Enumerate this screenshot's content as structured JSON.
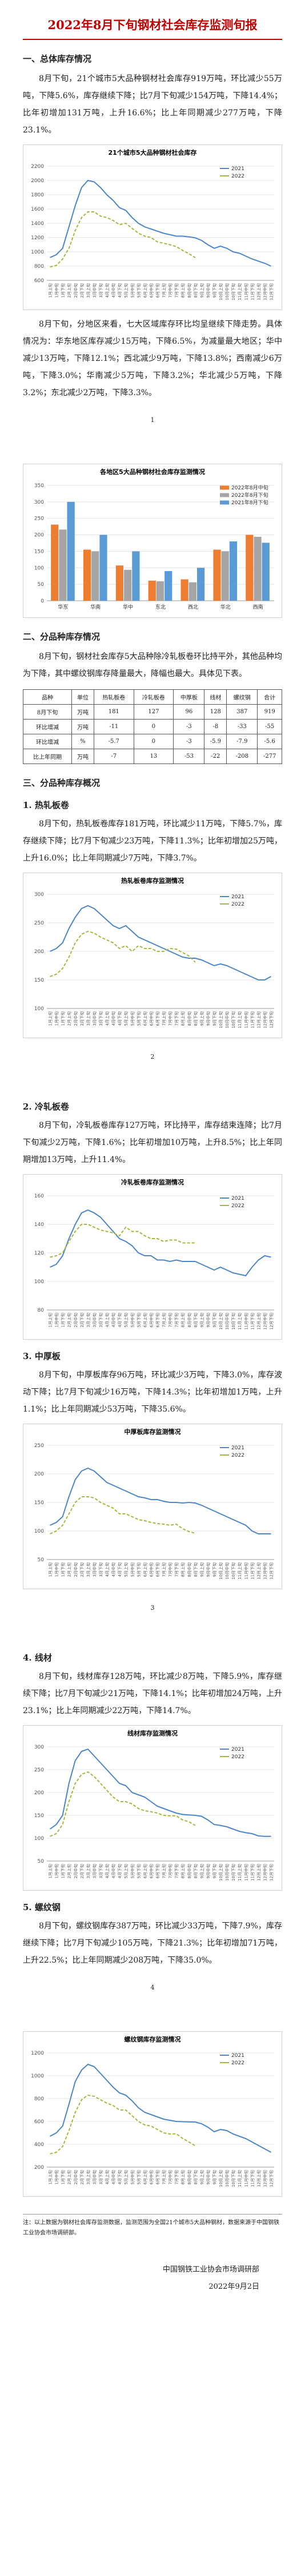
{
  "title": "2022年8月下旬钢材社会库存监测旬报",
  "section1": {
    "heading": "一、总体库存情况",
    "para1": "8月下旬，21个城市5大品种钢材社会库存919万吨，环比减少55万吨，下降5.6%，库存继续下降；比7月下旬减少154万吨，下降14.4%；比年初增加131万吨，上升16.6%；比上年同期减少277万吨，下降23.1%。",
    "para2": "8月下旬，分地区来看，七大区域库存环比均呈继续下降走势。具体情况为：华东地区库存减少15万吨，下降6.5%，为减量最大地区；华中减少13万吨，下降12.1%；西北减少9万吨，下降13.8%；西南减少6万吨，下降3.0%；华南减少5万吨，下降3.2%；华北减少5万吨，下降3.2%；东北减少2万吨，下降3.3%。"
  },
  "section2": {
    "heading": "二、分品种库存情况",
    "para": "8月下旬，钢材社会库存5大品种除冷轧板卷环比持平外，其他品种均为下降，其中螺纹钢库存降量最大，降幅也最大。具体见下表。",
    "table": {
      "header": [
        "品种",
        "单位",
        "热轧板卷",
        "冷轧板卷",
        "中厚板",
        "线材",
        "螺纹钢",
        "合计"
      ],
      "rows": [
        [
          "8月下旬",
          "万吨",
          181,
          127,
          96,
          128,
          387,
          919
        ],
        [
          "环比增减",
          "万吨",
          -11,
          0,
          -3,
          -8,
          -33,
          -55
        ],
        [
          "环比增减",
          "%",
          -5.7,
          0,
          -3.0,
          -5.9,
          -7.9,
          -5.6
        ],
        [
          "比上年同期",
          "万吨",
          -7,
          13,
          -53,
          -22,
          -208,
          -277
        ]
      ]
    }
  },
  "section3": {
    "heading": "三、分品种库存概况",
    "items": [
      {
        "heading": "1. 热轧板卷",
        "para": "8月下旬，热轧板卷库存181万吨，环比减少11万吨，下降5.7%，库存继续下降；比7月下旬减少23万吨，下降11.3%；比年初增加25万吨，上升16.0%；比上年同期减少7万吨，下降3.7%。"
      },
      {
        "heading": "2. 冷轧板卷",
        "para": "8月下旬，冷轧板卷库存127万吨，环比持平，库存结束连降；比7月下旬减少2万吨，下降1.6%；比年初增加10万吨，上升8.5%；比上年同期增加13万吨，上升11.4%。"
      },
      {
        "heading": "3. 中厚板",
        "para": "8月下旬，中厚板库存96万吨，环比减少3万吨，下降3.0%，库存波动下降；比7月下旬减少16万吨，下降14.3%；比年初增加1万吨，上升1.1%；比上年同期减少53万吨，下降35.6%。"
      },
      {
        "heading": "4. 线材",
        "para": "8月下旬，线材库存128万吨，环比减少8万吨，下降5.9%，库存继续下降；比7月下旬减少21万吨，下降14.1%；比年初增加24万吨，上升23.1%；比上年同期减少22万吨，下降14.7%。"
      },
      {
        "heading": "5. 螺纹钢",
        "para": "8月下旬，螺纹钢库存387万吨，环比减少33万吨，下降7.9%，库存继续下降；比7月下旬减少105万吨，下降21.3%；比年初增加71万吨，上升22.5%；比上年同期减少208万吨，下降35.0%。"
      }
    ]
  },
  "note": "注：以上数据为钢材社会库存监测数据，监测范围为全国21个城市5大品种钢材，数据来源于中国钢铁工业协会市场调研部。",
  "footer": {
    "org": "中国钢铁工业协会市场调研部",
    "date": "2022年9月2日"
  },
  "page_numbers": [
    1,
    2,
    3,
    4
  ],
  "chart_data": [
    {
      "type": "line",
      "title": "21个城市5大品种钢材社会库存",
      "legend": "upper right",
      "categories": [
        "1月上旬",
        "1月中旬",
        "1月下旬",
        "2月上旬",
        "2月中旬",
        "2月下旬",
        "3月上旬",
        "3月中旬",
        "3月下旬",
        "4月上旬",
        "4月中旬",
        "4月下旬",
        "5月上旬",
        "5月中旬",
        "5月下旬",
        "6月上旬",
        "6月中旬",
        "6月下旬",
        "7月上旬",
        "7月中旬",
        "7月下旬",
        "8月上旬",
        "8月中旬",
        "8月下旬",
        "9月上旬",
        "9月中旬",
        "9月下旬",
        "10月上旬",
        "10月中旬",
        "10月下旬",
        "11月上旬",
        "11月中旬",
        "11月下旬",
        "12月上旬",
        "12月中旬",
        "12月下旬"
      ],
      "ylim": [
        600,
        2200
      ],
      "yticks": [
        600,
        800,
        1000,
        1200,
        1400,
        1600,
        1800,
        2000,
        2200
      ],
      "grid": true,
      "series": [
        {
          "name": "2021",
          "color": "#4a86c8",
          "values": [
            920,
            960,
            1050,
            1350,
            1650,
            1900,
            2000,
            1980,
            1900,
            1800,
            1720,
            1620,
            1580,
            1480,
            1400,
            1350,
            1320,
            1290,
            1260,
            1240,
            1220,
            1220,
            1210,
            1196,
            1160,
            1100,
            1050,
            1080,
            1050,
            1000,
            980,
            940,
            900,
            870,
            840,
            800
          ]
        },
        {
          "name": "2022",
          "color": "#a3b83c",
          "values": [
            788,
            810,
            900,
            1050,
            1300,
            1480,
            1560,
            1560,
            1500,
            1480,
            1440,
            1380,
            1400,
            1330,
            1260,
            1220,
            1200,
            1140,
            1120,
            1100,
            1073,
            1020,
            974,
            919,
            null,
            null,
            null,
            null,
            null,
            null,
            null,
            null,
            null,
            null,
            null,
            null
          ]
        }
      ]
    },
    {
      "type": "bar",
      "title": "各地区5大品种钢材社会库存监测情况",
      "legend": "upper right",
      "categories": [
        "华东",
        "华南",
        "华中",
        "东北",
        "西北",
        "华北",
        "西南"
      ],
      "ylim": [
        0,
        350
      ],
      "yticks": [
        0,
        50,
        100,
        150,
        200,
        250,
        300,
        350
      ],
      "grid": true,
      "series": [
        {
          "name": "2022年8月中旬",
          "color": "#ed7d31",
          "values": [
            231,
            155,
            107,
            61,
            65,
            155,
            200
          ]
        },
        {
          "name": "2022年8月下旬",
          "color": "#a5a5a5",
          "values": [
            216,
            150,
            94,
            59,
            56,
            150,
            194
          ]
        },
        {
          "name": "2021年8月下旬",
          "color": "#5b9bd5",
          "values": [
            300,
            200,
            150,
            90,
            100,
            180,
            176
          ]
        }
      ]
    },
    {
      "type": "line",
      "title": "热轧板卷库存监测情况",
      "legend": "upper right",
      "categories": [
        "1月上旬",
        "1月中旬",
        "1月下旬",
        "2月上旬",
        "2月中旬",
        "2月下旬",
        "3月上旬",
        "3月中旬",
        "3月下旬",
        "4月上旬",
        "4月中旬",
        "4月下旬",
        "5月上旬",
        "5月中旬",
        "5月下旬",
        "6月上旬",
        "6月中旬",
        "6月下旬",
        "7月上旬",
        "7月中旬",
        "7月下旬",
        "8月上旬",
        "8月中旬",
        "8月下旬",
        "9月上旬",
        "9月中旬",
        "9月下旬",
        "10月上旬",
        "10月中旬",
        "10月下旬",
        "11月上旬",
        "11月中旬",
        "11月下旬",
        "12月上旬",
        "12月中旬",
        "12月下旬"
      ],
      "ylim": [
        100,
        300
      ],
      "yticks": [
        100,
        150,
        200,
        250,
        300
      ],
      "grid": true,
      "series": [
        {
          "name": "2021",
          "color": "#4a86c8",
          "values": [
            200,
            205,
            215,
            240,
            260,
            275,
            280,
            275,
            265,
            255,
            245,
            240,
            245,
            235,
            225,
            220,
            215,
            210,
            205,
            200,
            195,
            190,
            188,
            188,
            185,
            180,
            175,
            178,
            175,
            170,
            165,
            160,
            155,
            150,
            150,
            156
          ]
        },
        {
          "name": "2022",
          "color": "#a3b83c",
          "values": [
            156,
            160,
            170,
            190,
            215,
            230,
            235,
            232,
            225,
            220,
            215,
            205,
            210,
            200,
            210,
            205,
            205,
            200,
            200,
            205,
            204,
            198,
            192,
            181,
            null,
            null,
            null,
            null,
            null,
            null,
            null,
            null,
            null,
            null,
            null,
            null
          ]
        }
      ]
    },
    {
      "type": "line",
      "title": "冷轧板卷库存监测情况",
      "legend": "upper right",
      "categories": [
        "1月上旬",
        "1月中旬",
        "1月下旬",
        "2月上旬",
        "2月中旬",
        "2月下旬",
        "3月上旬",
        "3月中旬",
        "3月下旬",
        "4月上旬",
        "4月中旬",
        "4月下旬",
        "5月上旬",
        "5月中旬",
        "5月下旬",
        "6月上旬",
        "6月中旬",
        "6月下旬",
        "7月上旬",
        "7月中旬",
        "7月下旬",
        "8月上旬",
        "8月中旬",
        "8月下旬",
        "9月上旬",
        "9月中旬",
        "9月下旬",
        "10月上旬",
        "10月中旬",
        "10月下旬",
        "11月上旬",
        "11月中旬",
        "11月下旬",
        "12月上旬",
        "12月中旬",
        "12月下旬"
      ],
      "ylim": [
        80,
        160
      ],
      "yticks": [
        80,
        100,
        120,
        140,
        160
      ],
      "grid": true,
      "series": [
        {
          "name": "2021",
          "color": "#4a86c8",
          "values": [
            110,
            112,
            118,
            130,
            140,
            148,
            150,
            148,
            145,
            140,
            135,
            130,
            128,
            125,
            120,
            118,
            118,
            115,
            115,
            114,
            115,
            114,
            114,
            114,
            112,
            110,
            108,
            110,
            108,
            106,
            105,
            104,
            110,
            115,
            118,
            117
          ]
        },
        {
          "name": "2022",
          "color": "#a3b83c",
          "values": [
            117,
            118,
            120,
            128,
            135,
            140,
            140,
            138,
            136,
            135,
            134,
            132,
            138,
            135,
            135,
            132,
            130,
            130,
            128,
            129,
            129,
            127,
            127,
            127,
            null,
            null,
            null,
            null,
            null,
            null,
            null,
            null,
            null,
            null,
            null,
            null
          ]
        }
      ]
    },
    {
      "type": "line",
      "title": "中厚板库存监测情况",
      "legend": "upper right",
      "categories": [
        "1月上旬",
        "1月中旬",
        "1月下旬",
        "2月上旬",
        "2月中旬",
        "2月下旬",
        "3月上旬",
        "3月中旬",
        "3月下旬",
        "4月上旬",
        "4月中旬",
        "4月下旬",
        "5月上旬",
        "5月中旬",
        "5月下旬",
        "6月上旬",
        "6月中旬",
        "6月下旬",
        "7月上旬",
        "7月中旬",
        "7月下旬",
        "8月上旬",
        "8月中旬",
        "8月下旬",
        "9月上旬",
        "9月中旬",
        "9月下旬",
        "10月上旬",
        "10月中旬",
        "10月下旬",
        "11月上旬",
        "11月中旬",
        "11月下旬",
        "12月上旬",
        "12月中旬",
        "12月下旬"
      ],
      "ylim": [
        50,
        250
      ],
      "yticks": [
        50,
        100,
        150,
        200,
        250
      ],
      "grid": true,
      "series": [
        {
          "name": "2021",
          "color": "#4a86c8",
          "values": [
            110,
            115,
            125,
            160,
            190,
            205,
            210,
            205,
            195,
            185,
            180,
            175,
            170,
            165,
            160,
            158,
            155,
            155,
            152,
            150,
            150,
            149,
            150,
            149,
            145,
            140,
            135,
            130,
            125,
            120,
            115,
            110,
            100,
            95,
            95,
            95
          ]
        },
        {
          "name": "2022",
          "color": "#a3b83c",
          "values": [
            95,
            100,
            110,
            130,
            150,
            160,
            160,
            158,
            150,
            145,
            140,
            130,
            130,
            125,
            120,
            118,
            115,
            113,
            112,
            110,
            112,
            104,
            99,
            96,
            null,
            null,
            null,
            null,
            null,
            null,
            null,
            null,
            null,
            null,
            null,
            null
          ]
        }
      ]
    },
    {
      "type": "line",
      "title": "线材库存监测情况",
      "legend": "upper right",
      "categories": [
        "1月上旬",
        "1月中旬",
        "1月下旬",
        "2月上旬",
        "2月中旬",
        "2月下旬",
        "3月上旬",
        "3月中旬",
        "3月下旬",
        "4月上旬",
        "4月中旬",
        "4月下旬",
        "5月上旬",
        "5月中旬",
        "5月下旬",
        "6月上旬",
        "6月中旬",
        "6月下旬",
        "7月上旬",
        "7月中旬",
        "7月下旬",
        "8月上旬",
        "8月中旬",
        "8月下旬",
        "9月上旬",
        "9月中旬",
        "9月下旬",
        "10月上旬",
        "10月中旬",
        "10月下旬",
        "11月上旬",
        "11月中旬",
        "11月下旬",
        "12月上旬",
        "12月中旬",
        "12月下旬"
      ],
      "ylim": [
        50,
        300
      ],
      "yticks": [
        50,
        100,
        150,
        200,
        250,
        300
      ],
      "grid": true,
      "series": [
        {
          "name": "2021",
          "color": "#4a86c8",
          "values": [
            120,
            130,
            150,
            220,
            270,
            290,
            295,
            280,
            265,
            250,
            235,
            220,
            215,
            200,
            195,
            190,
            180,
            170,
            165,
            160,
            155,
            152,
            151,
            150,
            148,
            140,
            130,
            128,
            125,
            120,
            115,
            112,
            110,
            105,
            104,
            104
          ]
        },
        {
          "name": "2022",
          "color": "#a3b83c",
          "values": [
            104,
            110,
            130,
            180,
            220,
            240,
            245,
            235,
            220,
            205,
            190,
            180,
            180,
            175,
            165,
            160,
            158,
            155,
            150,
            149,
            149,
            140,
            136,
            128,
            null,
            null,
            null,
            null,
            null,
            null,
            null,
            null,
            null,
            null,
            null,
            null
          ]
        }
      ]
    },
    {
      "type": "line",
      "title": "螺纹钢库存监测情况",
      "legend": "upper right",
      "categories": [
        "1月上旬",
        "1月中旬",
        "1月下旬",
        "2月上旬",
        "2月中旬",
        "2月下旬",
        "3月上旬",
        "3月中旬",
        "3月下旬",
        "4月上旬",
        "4月中旬",
        "4月下旬",
        "5月上旬",
        "5月中旬",
        "5月下旬",
        "6月上旬",
        "6月中旬",
        "6月下旬",
        "7月上旬",
        "7月中旬",
        "7月下旬",
        "8月上旬",
        "8月中旬",
        "8月下旬",
        "9月上旬",
        "9月中旬",
        "9月下旬",
        "10月上旬",
        "10月中旬",
        "10月下旬",
        "11月上旬",
        "11月中旬",
        "11月下旬",
        "12月上旬",
        "12月中旬",
        "12月下旬"
      ],
      "ylim": [
        200,
        1200
      ],
      "yticks": [
        200,
        400,
        600,
        800,
        1000,
        1200
      ],
      "grid": true,
      "series": [
        {
          "name": "2021",
          "color": "#4a86c8",
          "values": [
            470,
            500,
            560,
            750,
            950,
            1050,
            1100,
            1080,
            1020,
            960,
            900,
            850,
            830,
            780,
            720,
            680,
            660,
            640,
            620,
            610,
            600,
            598,
            596,
            595,
            580,
            550,
            510,
            530,
            520,
            490,
            470,
            450,
            420,
            390,
            360,
            330
          ]
        },
        {
          "name": "2022",
          "color": "#a3b83c",
          "values": [
            316,
            330,
            380,
            520,
            680,
            790,
            830,
            820,
            790,
            760,
            740,
            700,
            700,
            650,
            600,
            570,
            560,
            530,
            500,
            490,
            492,
            452,
            420,
            387,
            null,
            null,
            null,
            null,
            null,
            null,
            null,
            null,
            null,
            null,
            null,
            null
          ]
        }
      ]
    }
  ]
}
